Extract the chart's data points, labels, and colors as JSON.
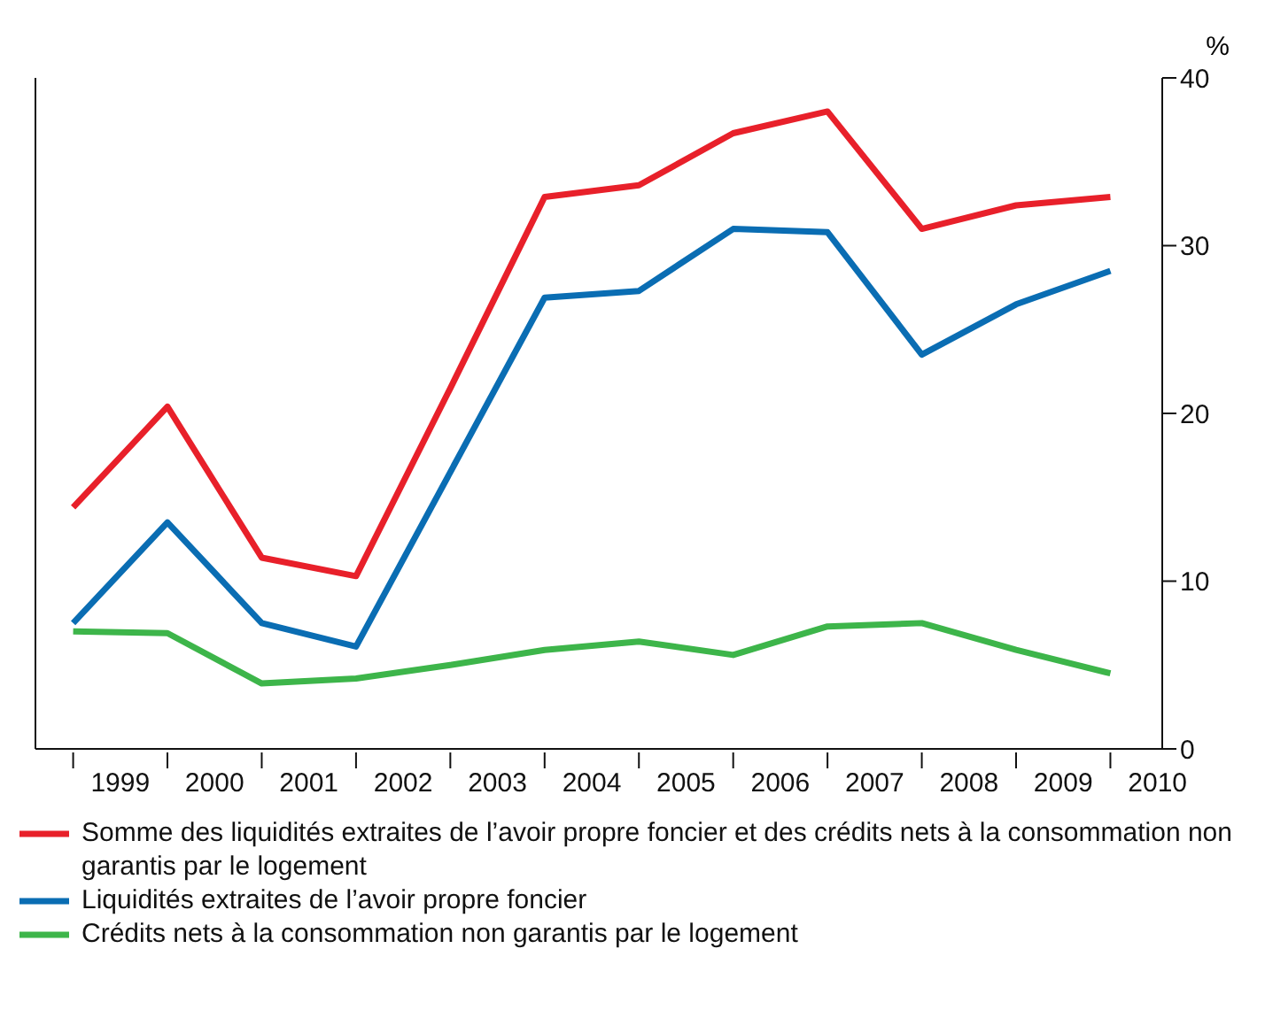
{
  "chart_data": {
    "type": "line",
    "ylabel": "%",
    "x": [
      1999,
      2000,
      2001,
      2002,
      2003,
      2004,
      2005,
      2006,
      2007,
      2008,
      2009,
      2010
    ],
    "xlim": [
      1998.6,
      2010.55
    ],
    "xticks": [
      {
        "value": 1999,
        "label": null
      },
      {
        "value": 2000,
        "label": null
      },
      {
        "value": 2001,
        "label": null
      },
      {
        "value": 2002,
        "label": null
      },
      {
        "value": 2003,
        "label": null
      },
      {
        "value": 2004,
        "label": null
      },
      {
        "value": 2005,
        "label": null
      },
      {
        "value": 2006,
        "label": null
      },
      {
        "value": 2007,
        "label": null
      },
      {
        "value": 2008,
        "label": null
      },
      {
        "value": 2009,
        "label": null
      },
      {
        "value": 2010,
        "label": null
      },
      {
        "value": 1999.5,
        "label": "1999"
      },
      {
        "value": 2000.5,
        "label": "2000"
      },
      {
        "value": 2001.5,
        "label": "2001"
      },
      {
        "value": 2002.5,
        "label": "2002"
      },
      {
        "value": 2003.5,
        "label": "2003"
      },
      {
        "value": 2004.5,
        "label": "2004"
      },
      {
        "value": 2005.5,
        "label": "2005"
      },
      {
        "value": 2006.5,
        "label": "2006"
      },
      {
        "value": 2007.5,
        "label": "2007"
      },
      {
        "value": 2008.5,
        "label": "2008"
      },
      {
        "value": 2009.5,
        "label": "2009"
      },
      {
        "value": 2010.5,
        "label": "2010"
      }
    ],
    "series": [
      {
        "name": "Somme des liquidités extraites de l’avoir propre foncier et des crédits nets à la consommation non garantis par le logement",
        "color": "#e8202a",
        "values": [
          14.4,
          20.4,
          11.4,
          10.3,
          21.5,
          32.9,
          33.6,
          36.7,
          38.0,
          31.0,
          32.4,
          32.9
        ]
      },
      {
        "name": "Liquidités extraites de l’avoir propre foncier",
        "color": "#0a6db3",
        "values": [
          7.5,
          13.5,
          7.5,
          6.1,
          16.5,
          26.9,
          27.3,
          31.0,
          30.8,
          23.5,
          26.5,
          28.5
        ]
      },
      {
        "name": "Crédits nets à la consommation non garantis par le logement",
        "color": "#3db54a",
        "values": [
          7.0,
          6.9,
          3.9,
          4.2,
          5.0,
          5.9,
          6.4,
          5.6,
          7.3,
          7.5,
          5.9,
          4.5
        ]
      }
    ],
    "ylim": [
      0,
      40
    ],
    "yticks": [
      0,
      10,
      20,
      30,
      40
    ],
    "grid": false,
    "legend": "bottom",
    "marker": "none",
    "line_style": "solid"
  }
}
